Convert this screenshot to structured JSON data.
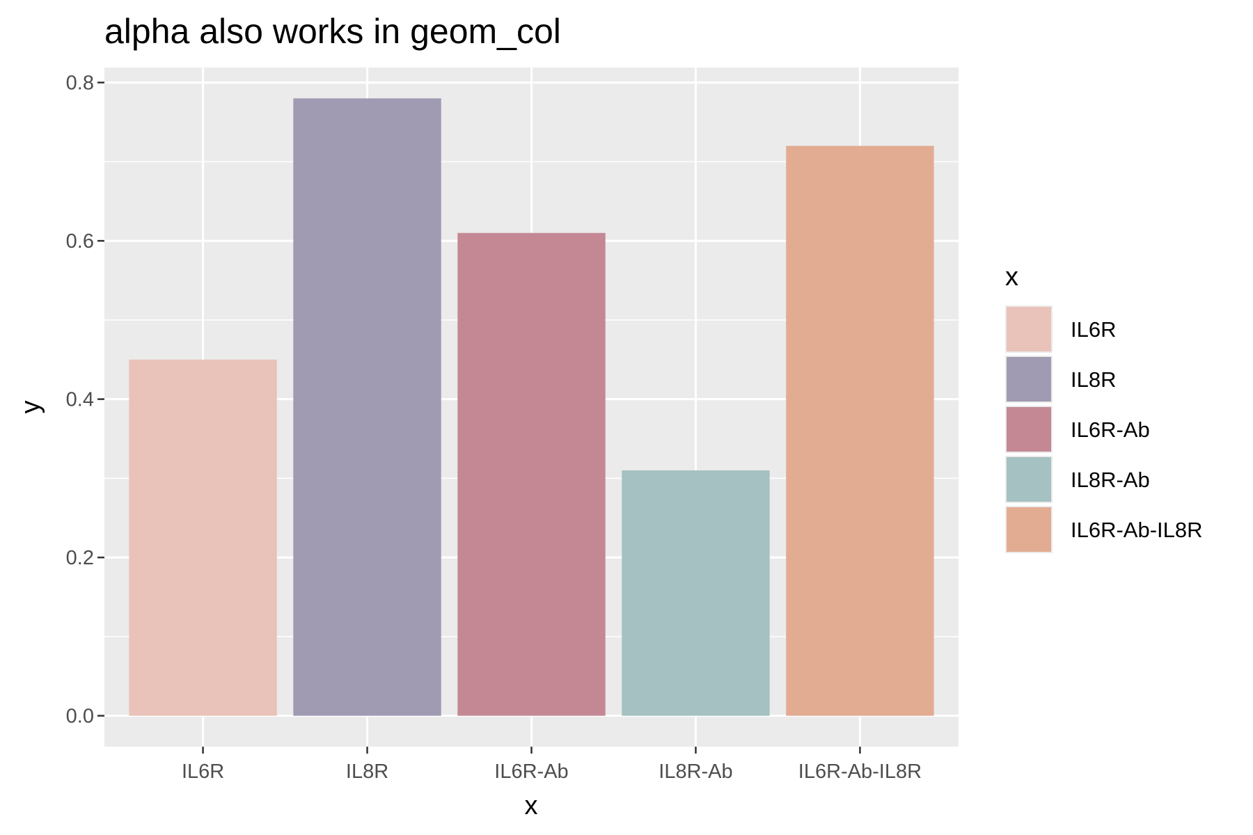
{
  "chart_data": {
    "type": "bar",
    "title": "alpha also works in geom_col",
    "xlabel": "x",
    "ylabel": "y",
    "categories": [
      "IL6R",
      "IL8R",
      "IL6R-Ab",
      "IL8R-Ab",
      "IL6R-Ab-IL8R"
    ],
    "values": [
      0.45,
      0.78,
      0.61,
      0.31,
      0.72
    ],
    "colors": [
      "#e9c2b9",
      "#a09ab2",
      "#c48895",
      "#a5c1c1",
      "#e2ac92"
    ],
    "ylim": [
      -0.039,
      0.819
    ],
    "yticks": [
      0.0,
      0.2,
      0.4,
      0.6,
      0.8
    ],
    "ytick_labels": [
      "0.0",
      "0.2",
      "0.4",
      "0.6",
      "0.8"
    ],
    "grid": true,
    "legend": {
      "title": "x",
      "position": "right",
      "entries": [
        "IL6R",
        "IL8R",
        "IL6R-Ab",
        "IL8R-Ab",
        "IL6R-Ab-IL8R"
      ]
    },
    "panel_background": "#ebebeb",
    "grid_color": "#ffffff"
  }
}
